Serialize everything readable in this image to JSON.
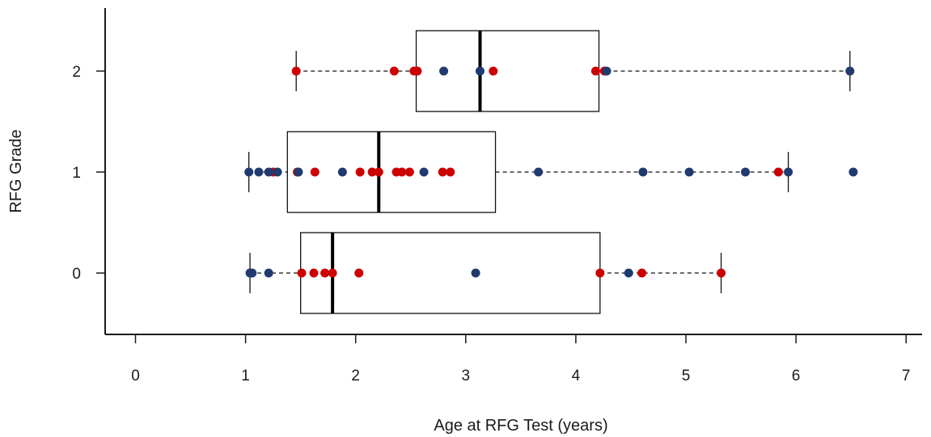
{
  "chart_data": {
    "type": "box",
    "orientation": "horizontal",
    "title": "",
    "xlabel": "Age at RFG Test (years)",
    "ylabel": "RFG Grade",
    "xlim": [
      -0.3,
      7.2
    ],
    "xticks": [
      0,
      1,
      2,
      3,
      4,
      5,
      6,
      7
    ],
    "xtick_labels": [
      "0",
      "1",
      "2",
      "3",
      "4",
      "5",
      "6",
      "7"
    ],
    "ylim": [
      -0.6,
      2.6
    ],
    "yticks": [
      0,
      1,
      2
    ],
    "ytick_labels": [
      "0",
      "1",
      "2"
    ],
    "grid": false,
    "legend": false,
    "colors": {
      "red": "#cc0000",
      "blue": "#1f3a6e",
      "box": "#111111"
    },
    "boxes": [
      {
        "group": "0",
        "y": 0,
        "whisker_low": 1.04,
        "q1": 1.5,
        "median": 1.79,
        "q3": 4.22,
        "whisker_high": 5.32
      },
      {
        "group": "1",
        "y": 1,
        "whisker_low": 1.03,
        "q1": 1.38,
        "median": 2.21,
        "q3": 3.27,
        "whisker_high": 5.93
      },
      {
        "group": "2",
        "y": 2,
        "whisker_low": 1.46,
        "q1": 2.55,
        "median": 3.13,
        "q3": 4.21,
        "whisker_high": 6.49
      }
    ],
    "series": [
      {
        "color": "#cc0000",
        "points": [
          {
            "x": 1.51,
            "y": 0
          },
          {
            "x": 1.62,
            "y": 0
          },
          {
            "x": 1.72,
            "y": 0
          },
          {
            "x": 1.79,
            "y": 0
          },
          {
            "x": 2.03,
            "y": 0
          },
          {
            "x": 4.22,
            "y": 0
          },
          {
            "x": 4.6,
            "y": 0
          },
          {
            "x": 5.32,
            "y": 0
          },
          {
            "x": 1.25,
            "y": 1
          },
          {
            "x": 1.47,
            "y": 1
          },
          {
            "x": 1.63,
            "y": 1
          },
          {
            "x": 2.04,
            "y": 1
          },
          {
            "x": 2.15,
            "y": 1
          },
          {
            "x": 2.21,
            "y": 1
          },
          {
            "x": 2.37,
            "y": 1
          },
          {
            "x": 2.42,
            "y": 1
          },
          {
            "x": 2.49,
            "y": 1
          },
          {
            "x": 2.79,
            "y": 1
          },
          {
            "x": 2.86,
            "y": 1
          },
          {
            "x": 5.84,
            "y": 1
          },
          {
            "x": 1.46,
            "y": 2
          },
          {
            "x": 2.35,
            "y": 2
          },
          {
            "x": 2.53,
            "y": 2
          },
          {
            "x": 2.56,
            "y": 2
          },
          {
            "x": 3.25,
            "y": 2
          },
          {
            "x": 4.18,
            "y": 2
          },
          {
            "x": 4.26,
            "y": 2
          }
        ]
      },
      {
        "color": "#1f3a6e",
        "points": [
          {
            "x": 1.04,
            "y": 0
          },
          {
            "x": 1.06,
            "y": 0
          },
          {
            "x": 1.21,
            "y": 0
          },
          {
            "x": 3.09,
            "y": 0
          },
          {
            "x": 4.48,
            "y": 0
          },
          {
            "x": 1.03,
            "y": 1
          },
          {
            "x": 1.12,
            "y": 1
          },
          {
            "x": 1.21,
            "y": 1
          },
          {
            "x": 1.29,
            "y": 1
          },
          {
            "x": 1.48,
            "y": 1
          },
          {
            "x": 1.88,
            "y": 1
          },
          {
            "x": 2.62,
            "y": 1
          },
          {
            "x": 3.66,
            "y": 1
          },
          {
            "x": 4.61,
            "y": 1
          },
          {
            "x": 5.03,
            "y": 1
          },
          {
            "x": 5.54,
            "y": 1
          },
          {
            "x": 5.93,
            "y": 1
          },
          {
            "x": 6.52,
            "y": 1
          },
          {
            "x": 2.8,
            "y": 2
          },
          {
            "x": 3.13,
            "y": 2
          },
          {
            "x": 4.28,
            "y": 2
          },
          {
            "x": 6.49,
            "y": 2
          }
        ]
      }
    ]
  }
}
